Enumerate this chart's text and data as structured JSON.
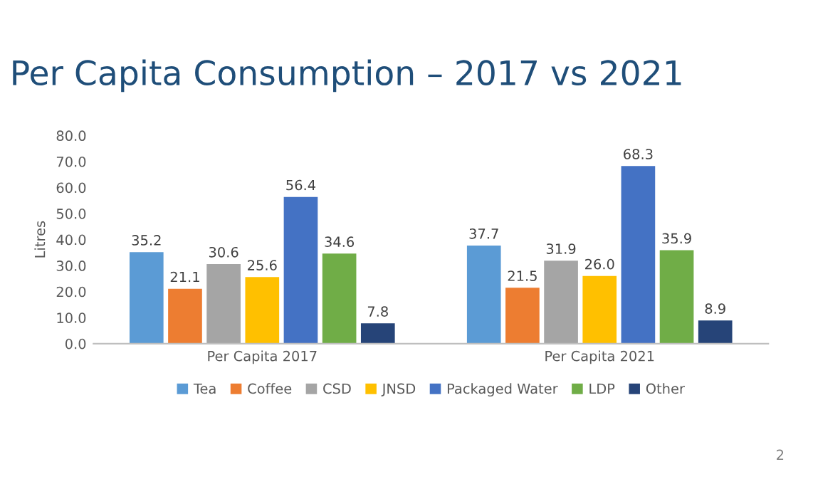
{
  "chart_data": {
    "type": "bar",
    "title": "Per Capita Consumption – 2017 vs 2021",
    "ylabel": "Litres",
    "categories": [
      "Per Capita 2017",
      "Per Capita 2021"
    ],
    "series": [
      {
        "name": "Tea",
        "color": "#5b9bd5",
        "values": [
          35.2,
          37.7
        ]
      },
      {
        "name": "Coffee",
        "color": "#ed7d31",
        "values": [
          21.1,
          21.5
        ]
      },
      {
        "name": "CSD",
        "color": "#a5a5a5",
        "values": [
          30.6,
          31.9
        ]
      },
      {
        "name": "JNSD",
        "color": "#ffc000",
        "values": [
          25.6,
          26.0
        ],
        "value_labels": [
          "25.6",
          "26.0"
        ]
      },
      {
        "name": "Packaged Water",
        "color": "#4472c4",
        "values": [
          56.4,
          68.3
        ]
      },
      {
        "name": "LDP",
        "color": "#70ad47",
        "values": [
          34.6,
          35.9
        ]
      },
      {
        "name": "Other",
        "color": "#264478",
        "values": [
          7.8,
          8.9
        ]
      }
    ],
    "ylim": [
      0,
      80
    ],
    "yticks": [
      {
        "value": 0,
        "label": "0.0"
      },
      {
        "value": 10,
        "label": "10.0"
      },
      {
        "value": 20,
        "label": "20.0"
      },
      {
        "value": 30,
        "label": "30.0"
      },
      {
        "value": 40,
        "label": "40.0"
      },
      {
        "value": 50,
        "label": "50.0"
      },
      {
        "value": 60,
        "label": "60.0"
      },
      {
        "value": 70,
        "label": "70.0"
      },
      {
        "value": 80,
        "label": "80.0"
      }
    ],
    "data_labels": true,
    "legend": "bottom",
    "grid": false,
    "annotations": [
      "2"
    ]
  }
}
